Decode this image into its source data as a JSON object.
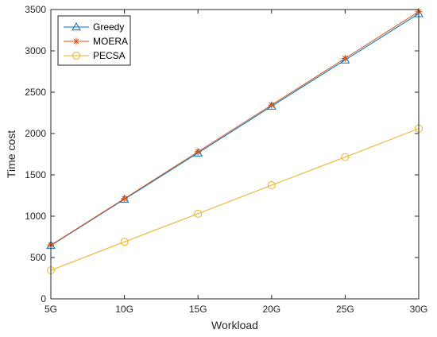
{
  "chart_data": {
    "type": "line",
    "title": "",
    "xlabel": "Workload",
    "ylabel": "Time cost",
    "categories": [
      "5G",
      "10G",
      "15G",
      "20G",
      "25G",
      "30G"
    ],
    "ylim": [
      0,
      3500
    ],
    "yticks": [
      0,
      500,
      1000,
      1500,
      2000,
      2500,
      3000,
      3500
    ],
    "grid": false,
    "legend_position": "top-left",
    "series": [
      {
        "name": "Greedy",
        "values": [
          645,
          1205,
          1765,
          2330,
          2890,
          3450
        ],
        "color": "#0072BD",
        "marker": "triangle"
      },
      {
        "name": "MOERA",
        "values": [
          650,
          1212,
          1780,
          2345,
          2910,
          3475
        ],
        "color": "#D95319",
        "marker": "asterisk"
      },
      {
        "name": "PECSA",
        "values": [
          345,
          690,
          1030,
          1375,
          1715,
          2060
        ],
        "color": "#EDB120",
        "marker": "circle"
      }
    ]
  }
}
